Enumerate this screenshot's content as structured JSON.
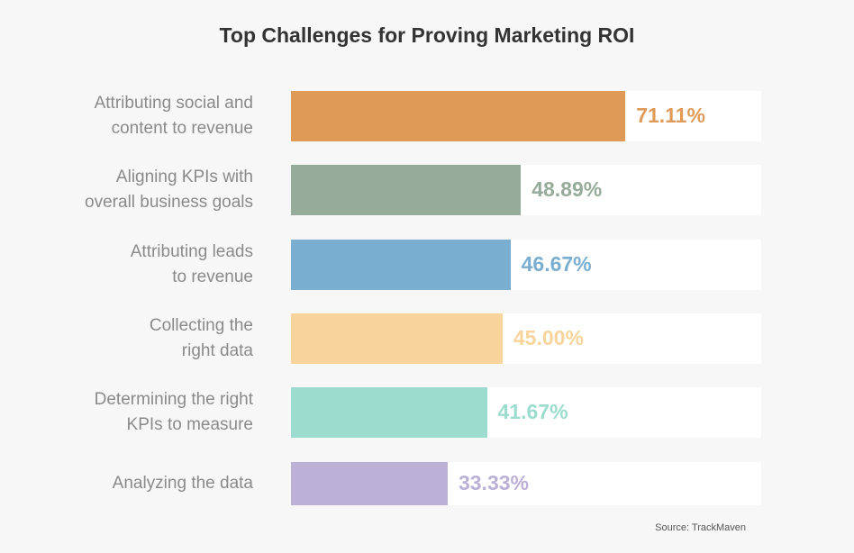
{
  "chart_data": {
    "type": "bar",
    "orientation": "horizontal",
    "title": "Top Challenges for Proving Marketing ROI",
    "categories": [
      [
        "Attributing social and",
        "content to revenue"
      ],
      [
        "Aligning KPIs with",
        "overall business goals"
      ],
      [
        "Attributing leads",
        "to revenue"
      ],
      [
        "Collecting the",
        "right data"
      ],
      [
        "Determining the right",
        "KPIs to measure"
      ],
      [
        "Analyzing the data"
      ]
    ],
    "values": [
      71.11,
      48.89,
      46.67,
      45.0,
      41.67,
      33.33
    ],
    "value_labels": [
      "71.11%",
      "48.89%",
      "46.67%",
      "45.00%",
      "41.67%",
      "33.33%"
    ],
    "colors": [
      "#de9a56",
      "#97ab9a",
      "#7aaed0",
      "#f8d49c",
      "#9bdccf",
      "#bcb0d6"
    ],
    "xlim": [
      0,
      100
    ],
    "grid": false,
    "source": "Source: TrackMaven"
  }
}
